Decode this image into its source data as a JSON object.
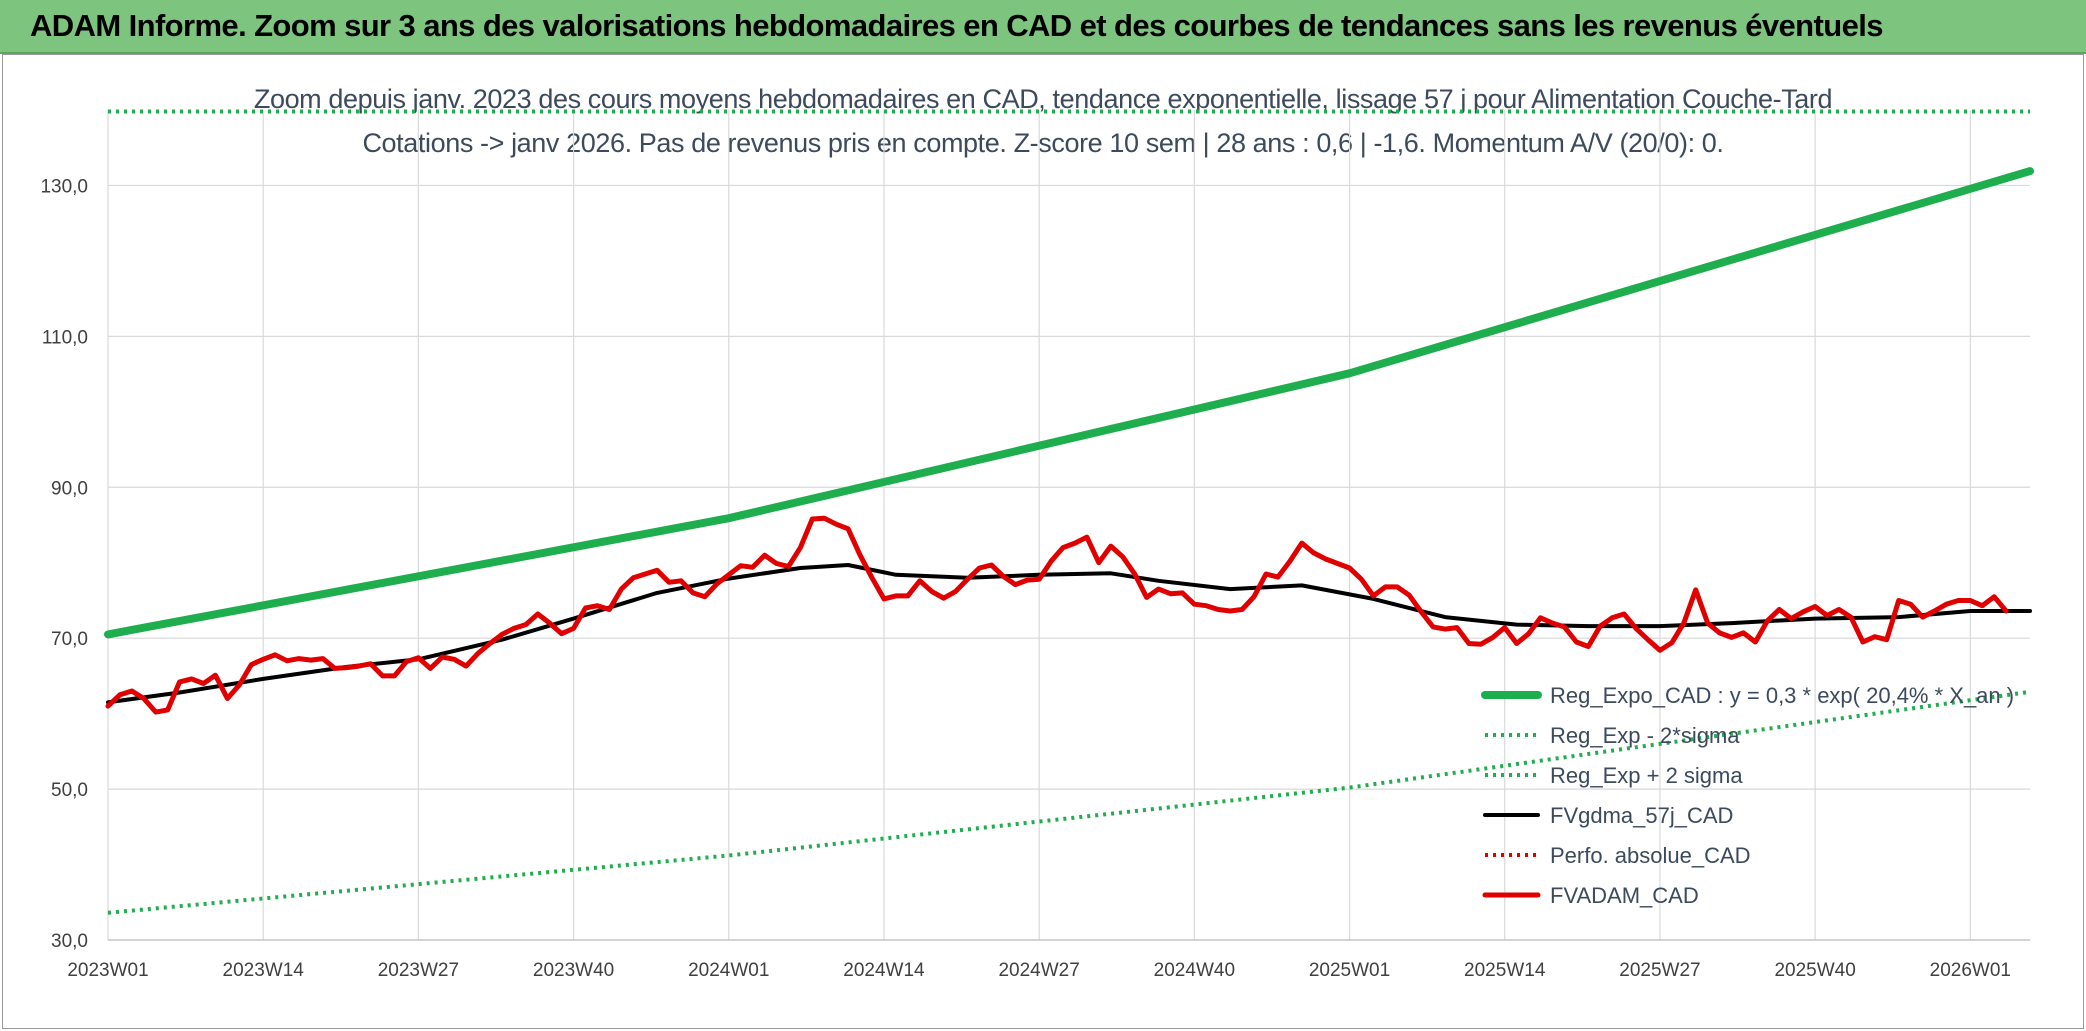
{
  "header": {
    "title": "ADAM Informe. Zoom sur 3 ans des valorisations hebdomadaires en CAD et des courbes de tendances sans les revenus éventuels"
  },
  "colors": {
    "banner": "#7dc47f",
    "trend": "#1fae4e",
    "band": "#1fae4e",
    "fvgdma": "#000000",
    "perfo": "#e00000",
    "fvadam": "#e00000",
    "grid": "#d9d9d9"
  },
  "chart_data": {
    "type": "line",
    "title": "Zoom depuis janv. 2023 des cours moyens hebdomadaires en CAD, tendance exponentielle, lissage 57 j pour Alimentation Couche-Tard",
    "subtitle": "Cotations -> janv 2026. Pas de revenus pris en compte. Z-score 10 sem | 28 ans : 0,6 | -1,6. Momentum A/V (20/0): 0.",
    "xlabel": "",
    "ylabel": "",
    "ylim": [
      30,
      140
    ],
    "yticks": [
      "30,0",
      "50,0",
      "70,0",
      "90,0",
      "110,0",
      "130,0"
    ],
    "ytick_values": [
      30,
      50,
      70,
      90,
      110,
      130
    ],
    "x_tick_labels": [
      "2023W01",
      "2023W14",
      "2023W27",
      "2023W40",
      "2024W01",
      "2024W14",
      "2024W27",
      "2024W40",
      "2025W01",
      "2025W14",
      "2025W27",
      "2025W40",
      "2026W01"
    ],
    "x_tick_index": [
      0,
      13,
      26,
      39,
      52,
      65,
      78,
      91,
      104,
      117,
      130,
      143,
      156
    ],
    "n_points": 162,
    "grid": true,
    "legend_position": "bottom-right",
    "series": [
      {
        "name": "Reg_Expo_CAD : y = 0,3 * exp( 20,4% *  X_an )",
        "style": "solid-thick",
        "color": "#1fae4e",
        "points": [
          [
            0,
            70.5
          ],
          [
            52,
            85.9
          ],
          [
            104,
            105.1
          ],
          [
            161,
            131.9
          ]
        ]
      },
      {
        "name": "Reg_Exp - 2*sigma",
        "style": "dotted",
        "color": "#1fae4e",
        "points": [
          [
            0,
            33.6
          ],
          [
            52,
            41.2
          ],
          [
            104,
            50.2
          ],
          [
            161,
            62.9
          ]
        ]
      },
      {
        "name": "Reg_Exp + 2 sigma",
        "style": "dotted",
        "color": "#1fae4e",
        "points": [
          [
            0,
            139.8
          ],
          [
            161,
            139.8
          ]
        ]
      },
      {
        "name": "FVgdma_57j_CAD",
        "style": "solid",
        "color": "#000000",
        "points": [
          [
            0,
            61.5
          ],
          [
            6,
            62.8
          ],
          [
            13,
            64.6
          ],
          [
            20,
            66.2
          ],
          [
            26,
            67.2
          ],
          [
            33,
            69.8
          ],
          [
            39,
            72.6
          ],
          [
            46,
            76.0
          ],
          [
            52,
            77.9
          ],
          [
            58,
            79.3
          ],
          [
            62,
            79.7
          ],
          [
            66,
            78.4
          ],
          [
            72,
            78.0
          ],
          [
            78,
            78.4
          ],
          [
            84,
            78.6
          ],
          [
            88,
            77.6
          ],
          [
            94,
            76.5
          ],
          [
            100,
            77.0
          ],
          [
            106,
            75.2
          ],
          [
            112,
            72.8
          ],
          [
            118,
            71.8
          ],
          [
            124,
            71.6
          ],
          [
            130,
            71.6
          ],
          [
            136,
            72.0
          ],
          [
            143,
            72.6
          ],
          [
            150,
            72.8
          ],
          [
            156,
            73.6
          ],
          [
            161,
            73.6
          ]
        ]
      },
      {
        "name": "Perfo. absolue_CAD",
        "style": "dotted",
        "color": "#e00000",
        "points": []
      },
      {
        "name": "FVADAM_CAD",
        "style": "solid-thick",
        "color": "#e00000",
        "points": [
          [
            0,
            61.0
          ],
          [
            1,
            62.5
          ],
          [
            2,
            63.0
          ],
          [
            3,
            62.0
          ],
          [
            4,
            60.2
          ],
          [
            5,
            60.5
          ],
          [
            6,
            64.2
          ],
          [
            7,
            64.6
          ],
          [
            8,
            64.0
          ],
          [
            9,
            65.1
          ],
          [
            10,
            62.0
          ],
          [
            11,
            63.8
          ],
          [
            12,
            66.5
          ],
          [
            13,
            67.2
          ],
          [
            14,
            67.8
          ],
          [
            15,
            67.0
          ],
          [
            16,
            67.3
          ],
          [
            17,
            67.1
          ],
          [
            18,
            67.3
          ],
          [
            19,
            66.0
          ],
          [
            20,
            66.1
          ],
          [
            21,
            66.3
          ],
          [
            22,
            66.6
          ],
          [
            23,
            65.0
          ],
          [
            24,
            65.0
          ],
          [
            25,
            66.9
          ],
          [
            26,
            67.4
          ],
          [
            27,
            66.0
          ],
          [
            28,
            67.5
          ],
          [
            29,
            67.2
          ],
          [
            30,
            66.3
          ],
          [
            31,
            68.0
          ],
          [
            32,
            69.3
          ],
          [
            33,
            70.5
          ],
          [
            34,
            71.3
          ],
          [
            35,
            71.8
          ],
          [
            36,
            73.2
          ],
          [
            37,
            72.0
          ],
          [
            38,
            70.6
          ],
          [
            39,
            71.3
          ],
          [
            40,
            74.0
          ],
          [
            41,
            74.3
          ],
          [
            42,
            73.8
          ],
          [
            43,
            76.5
          ],
          [
            44,
            78.0
          ],
          [
            45,
            78.5
          ],
          [
            46,
            79.0
          ],
          [
            47,
            77.4
          ],
          [
            48,
            77.6
          ],
          [
            49,
            76.0
          ],
          [
            50,
            75.5
          ],
          [
            51,
            77.2
          ],
          [
            52,
            78.4
          ],
          [
            53,
            79.6
          ],
          [
            54,
            79.4
          ],
          [
            55,
            81.0
          ],
          [
            56,
            79.9
          ],
          [
            57,
            79.5
          ],
          [
            58,
            82.0
          ],
          [
            59,
            85.8
          ],
          [
            60,
            85.9
          ],
          [
            61,
            85.1
          ],
          [
            62,
            84.5
          ],
          [
            63,
            81.0
          ],
          [
            64,
            78.0
          ],
          [
            65,
            75.2
          ],
          [
            66,
            75.6
          ],
          [
            67,
            75.6
          ],
          [
            68,
            77.6
          ],
          [
            69,
            76.2
          ],
          [
            70,
            75.3
          ],
          [
            71,
            76.2
          ],
          [
            72,
            77.8
          ],
          [
            73,
            79.3
          ],
          [
            74,
            79.7
          ],
          [
            75,
            78.2
          ],
          [
            76,
            77.1
          ],
          [
            77,
            77.7
          ],
          [
            78,
            77.8
          ],
          [
            79,
            80.2
          ],
          [
            80,
            82.0
          ],
          [
            81,
            82.6
          ],
          [
            82,
            83.4
          ],
          [
            83,
            80.0
          ],
          [
            84,
            82.2
          ],
          [
            85,
            80.8
          ],
          [
            86,
            78.5
          ],
          [
            87,
            75.4
          ],
          [
            88,
            76.5
          ],
          [
            89,
            75.9
          ],
          [
            90,
            76.0
          ],
          [
            91,
            74.5
          ],
          [
            92,
            74.3
          ],
          [
            93,
            73.8
          ],
          [
            94,
            73.6
          ],
          [
            95,
            73.8
          ],
          [
            96,
            75.5
          ],
          [
            97,
            78.5
          ],
          [
            98,
            78.1
          ],
          [
            99,
            80.2
          ],
          [
            100,
            82.6
          ],
          [
            101,
            81.3
          ],
          [
            102,
            80.5
          ],
          [
            103,
            79.9
          ],
          [
            104,
            79.3
          ],
          [
            105,
            77.8
          ],
          [
            106,
            75.6
          ],
          [
            107,
            76.8
          ],
          [
            108,
            76.8
          ],
          [
            109,
            75.7
          ],
          [
            110,
            73.5
          ],
          [
            111,
            71.5
          ],
          [
            112,
            71.2
          ],
          [
            113,
            71.4
          ],
          [
            114,
            69.3
          ],
          [
            115,
            69.2
          ],
          [
            116,
            70.1
          ],
          [
            117,
            71.4
          ],
          [
            118,
            69.3
          ],
          [
            119,
            70.6
          ],
          [
            120,
            72.7
          ],
          [
            121,
            72.0
          ],
          [
            122,
            71.5
          ],
          [
            123,
            69.5
          ],
          [
            124,
            68.9
          ],
          [
            125,
            71.6
          ],
          [
            126,
            72.7
          ],
          [
            127,
            73.2
          ],
          [
            128,
            71.3
          ],
          [
            129,
            69.8
          ],
          [
            130,
            68.4
          ],
          [
            131,
            69.4
          ],
          [
            132,
            72.0
          ],
          [
            133,
            76.4
          ],
          [
            134,
            72.0
          ],
          [
            135,
            70.7
          ],
          [
            136,
            70.1
          ],
          [
            137,
            70.7
          ],
          [
            138,
            69.5
          ],
          [
            139,
            72.3
          ],
          [
            140,
            73.8
          ],
          [
            141,
            72.6
          ],
          [
            142,
            73.5
          ],
          [
            143,
            74.2
          ],
          [
            144,
            73.0
          ],
          [
            145,
            73.8
          ],
          [
            146,
            72.8
          ],
          [
            147,
            69.5
          ],
          [
            148,
            70.2
          ],
          [
            149,
            69.8
          ],
          [
            150,
            75.0
          ],
          [
            151,
            74.5
          ],
          [
            152,
            72.8
          ],
          [
            153,
            73.6
          ],
          [
            154,
            74.5
          ],
          [
            155,
            75.0
          ],
          [
            156,
            75.0
          ],
          [
            157,
            74.3
          ],
          [
            158,
            75.5
          ],
          [
            159,
            73.6
          ]
        ]
      }
    ]
  }
}
